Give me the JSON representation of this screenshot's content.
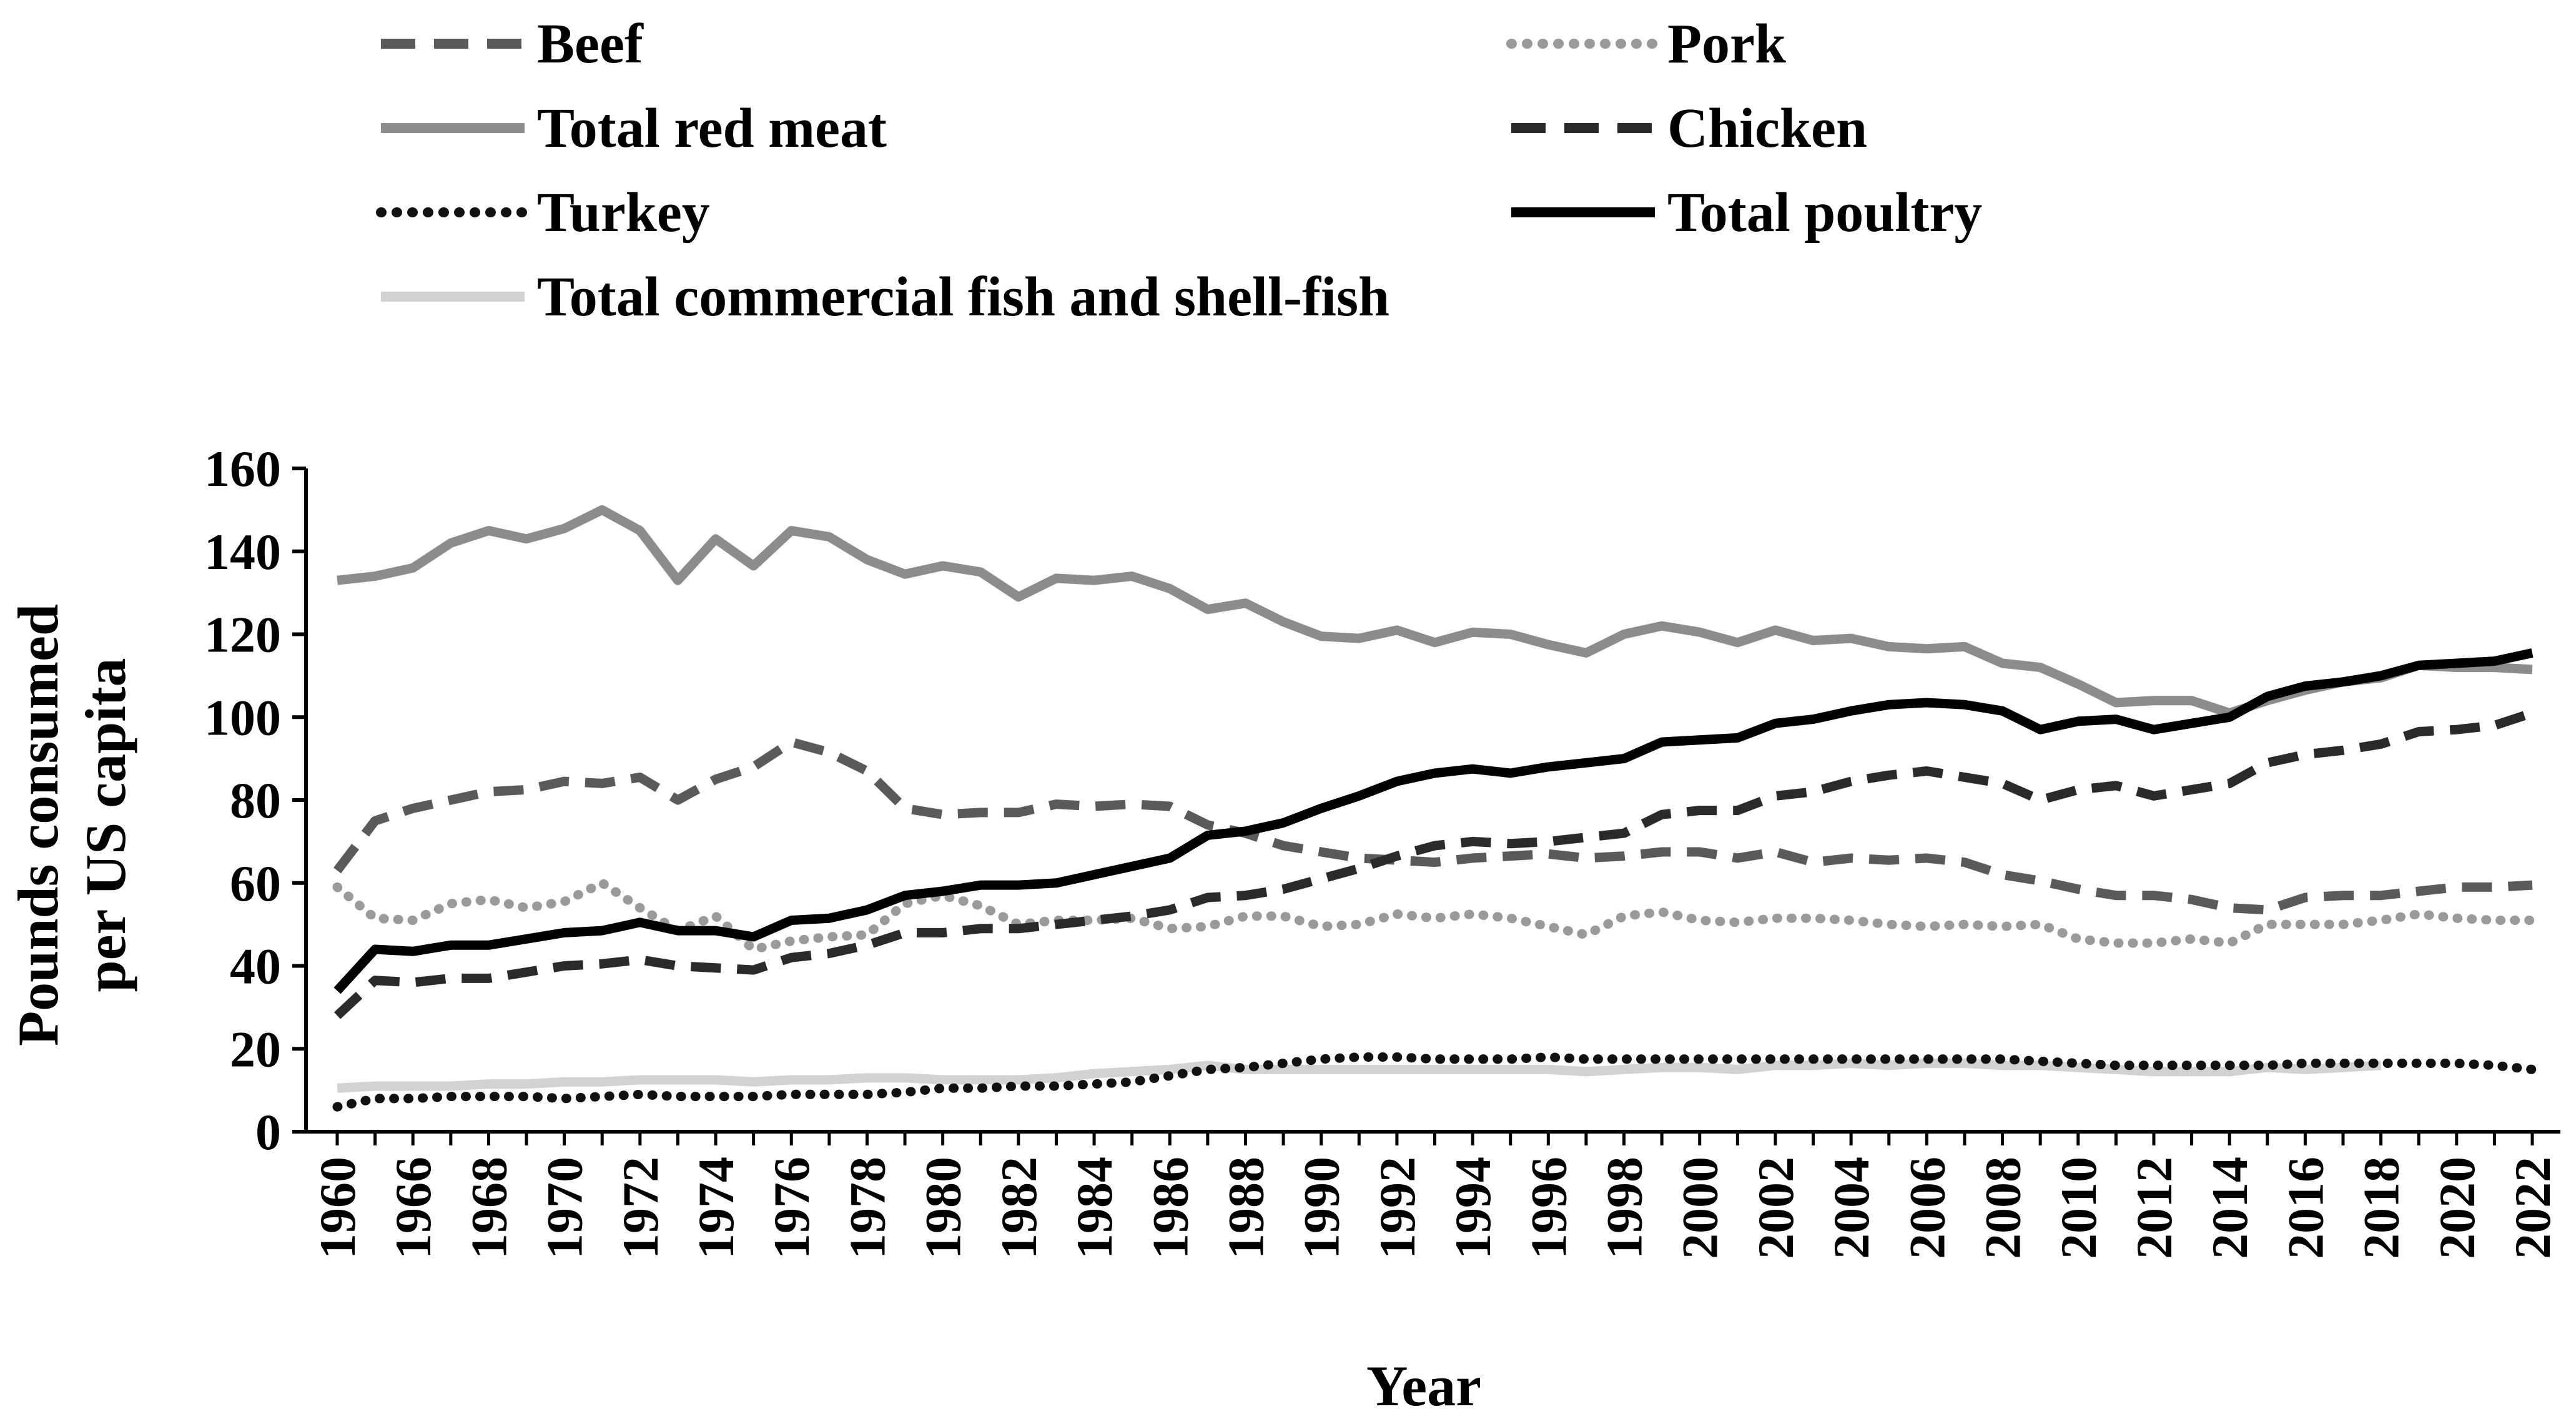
{
  "chart_data": {
    "type": "line",
    "title": "",
    "xlabel": "Year",
    "ylabel": "Pounds consumed per US capita",
    "ylabel_lines": [
      "Pounds consumed",
      "per US capita"
    ],
    "ylim": [
      0,
      160
    ],
    "yticks": [
      0,
      20,
      40,
      60,
      80,
      100,
      120,
      140,
      160
    ],
    "x": [
      1960,
      1965,
      1966,
      1967,
      1968,
      1969,
      1970,
      1971,
      1972,
      1973,
      1974,
      1975,
      1976,
      1977,
      1978,
      1979,
      1980,
      1981,
      1982,
      1983,
      1984,
      1985,
      1986,
      1987,
      1988,
      1989,
      1990,
      1991,
      1992,
      1993,
      1994,
      1995,
      1996,
      1997,
      1998,
      1999,
      2000,
      2001,
      2002,
      2003,
      2004,
      2005,
      2006,
      2007,
      2008,
      2009,
      2010,
      2011,
      2012,
      2013,
      2014,
      2015,
      2016,
      2017,
      2018,
      2019,
      2020,
      2021,
      2022
    ],
    "xtick_labels": [
      "1960",
      "1966",
      "1968",
      "1970",
      "1972",
      "1974",
      "1976",
      "1978",
      "1980",
      "1982",
      "1984",
      "1986",
      "1988",
      "1990",
      "1992",
      "1994",
      "1996",
      "1998",
      "2000",
      "2002",
      "2004",
      "2006",
      "2008",
      "2010",
      "2012",
      "2014",
      "2016",
      "2018",
      "2020",
      "2022"
    ],
    "legend_position": "top",
    "series": [
      {
        "name": "Beef",
        "color": "#5a5a5a",
        "dash": "dash",
        "values": [
          63,
          75,
          78,
          80,
          82,
          82.5,
          84.5,
          84,
          85.5,
          80,
          85,
          88,
          94,
          91.5,
          87,
          78,
          76.5,
          77,
          77,
          79,
          78.5,
          79,
          78.5,
          74,
          72,
          69,
          67.5,
          66,
          65.5,
          65,
          66,
          66.5,
          67,
          66,
          66.5,
          67.5,
          67.5,
          66,
          67.5,
          65,
          66,
          65.5,
          66,
          65,
          62,
          60.5,
          58.5,
          57,
          57,
          56,
          54,
          53.5,
          56.5,
          57,
          57,
          58,
          59,
          59,
          59.5
        ]
      },
      {
        "name": "Pork",
        "color": "#9a9a9a",
        "dash": "dot",
        "values": [
          59,
          51.5,
          51,
          55,
          56,
          54,
          55.5,
          60,
          54,
          48.5,
          52,
          44,
          46,
          47,
          47.5,
          55,
          57,
          54.5,
          50,
          51,
          51,
          51.5,
          49,
          49.5,
          52,
          52,
          49.5,
          50,
          52.5,
          51.5,
          52.5,
          51.5,
          49.5,
          47.5,
          52,
          53,
          51,
          50.5,
          51.5,
          51.5,
          51,
          50,
          49.5,
          50,
          49.5,
          50,
          46.5,
          45.5,
          45.5,
          46.5,
          45.5,
          50,
          50,
          50,
          51,
          52.5,
          51.5,
          51,
          51
        ]
      },
      {
        "name": "Total red meat",
        "color": "#8c8c8c",
        "dash": "solid",
        "values": [
          133,
          134,
          136,
          142,
          145,
          143,
          145.5,
          150,
          145,
          133,
          143,
          136.5,
          145,
          143.5,
          138,
          134.5,
          136.5,
          135,
          129,
          133.5,
          133,
          134,
          131,
          126,
          127.5,
          123,
          119.5,
          119,
          121,
          118,
          120.5,
          120,
          117.5,
          115.5,
          120,
          122,
          120.5,
          118,
          121,
          118.5,
          119,
          117,
          116.5,
          117,
          113,
          112,
          108,
          103.5,
          104,
          104,
          101,
          104,
          106.5,
          108.5,
          109.5,
          112.5,
          112,
          112,
          111.5
        ]
      },
      {
        "name": "Chicken",
        "color": "#2a2a2a",
        "dash": "dash",
        "values": [
          28,
          36.5,
          36,
          37,
          37,
          38.5,
          40,
          40.5,
          41.5,
          40,
          39.5,
          39,
          42,
          43,
          45,
          48,
          48,
          49,
          49,
          50,
          51,
          52,
          53.5,
          56.5,
          57,
          58.5,
          61,
          63.5,
          66.5,
          69,
          70,
          69.5,
          70,
          71,
          72,
          76.5,
          77.5,
          77.5,
          81,
          82,
          84.5,
          86,
          87,
          85.5,
          84,
          80,
          82.5,
          83.5,
          81,
          82.5,
          84,
          89,
          91,
          92,
          93.5,
          96.5,
          97,
          98,
          101
        ]
      },
      {
        "name": "Turkey",
        "color": "#111111",
        "dash": "dot",
        "values": [
          6,
          8,
          8,
          8.5,
          8.5,
          8.5,
          8,
          8.5,
          9,
          8.5,
          8.5,
          8.5,
          9,
          9,
          9,
          9.5,
          10.5,
          10.5,
          11,
          11,
          11.5,
          12,
          13.5,
          15,
          15.5,
          16.5,
          17.5,
          18,
          18,
          17.5,
          17.5,
          17.5,
          18,
          17.5,
          17.5,
          17.5,
          17.5,
          17.5,
          17.5,
          17.5,
          17.5,
          17.5,
          17.5,
          17.5,
          17.5,
          17,
          16.5,
          16,
          16,
          16,
          16,
          16,
          16.5,
          16.5,
          16.5,
          16.5,
          16.5,
          16,
          15
        ]
      },
      {
        "name": "Total poultry",
        "color": "#000000",
        "dash": "solid",
        "values": [
          34,
          44,
          43.5,
          45,
          45,
          46.5,
          48,
          48.5,
          50.5,
          48.5,
          48.5,
          47,
          51,
          51.5,
          53.5,
          57,
          58,
          59.5,
          59.5,
          60,
          62,
          64,
          66,
          71.5,
          72.5,
          74.5,
          78,
          81,
          84.5,
          86.5,
          87.5,
          86.5,
          88,
          89,
          90,
          94,
          94.5,
          95,
          98.5,
          99.5,
          101.5,
          103,
          103.5,
          103,
          101.5,
          97,
          99,
          99.5,
          97,
          98.5,
          100,
          105,
          107.5,
          108.5,
          110,
          112.5,
          113,
          113.5,
          115.5
        ]
      },
      {
        "name": "Total commercial fish and shell-fish",
        "color": "#d2d2d2",
        "dash": "solid",
        "values": [
          10.5,
          11,
          11,
          11,
          11.5,
          11.5,
          12,
          12,
          12.5,
          12.5,
          12.5,
          12,
          12.5,
          12.5,
          13,
          13,
          12.5,
          12.5,
          12.5,
          13,
          14,
          14.5,
          15,
          16,
          15,
          15,
          15,
          15,
          15,
          15,
          15,
          15,
          15,
          14.5,
          15,
          15.5,
          15.5,
          15,
          16,
          16,
          16.5,
          16,
          16.5,
          16.5,
          16,
          16,
          15.5,
          15,
          14.5,
          14.5,
          14.5,
          15.5,
          15,
          15.5,
          16,
          null,
          null,
          null,
          null
        ]
      }
    ]
  }
}
